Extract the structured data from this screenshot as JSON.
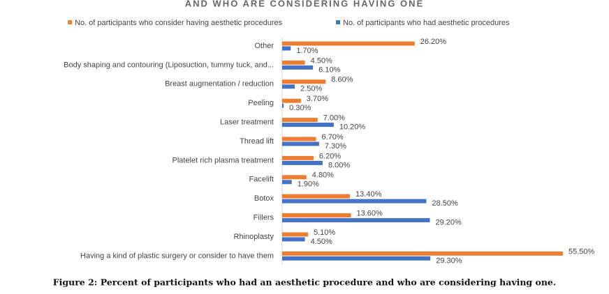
{
  "chart_data": {
    "type": "hbar",
    "title": "AND WHO ARE CONSIDERING HAVING ONE",
    "caption": "Figure 2: Percent of participants who had an aesthetic procedure and who are considering having one.",
    "categories": [
      "Other",
      "Body shaping and contouring (Liposuction, tummy tuck, and...",
      "Breast augmentation / reduction",
      "Peeling",
      "Laser treatment",
      "Thread lift",
      "Platelet rich plasma treatment",
      "Facelift",
      "Botox",
      "Fillers",
      "Rhinoplasty",
      "Having a kind of plastic surgery or consider to have them"
    ],
    "series": [
      {
        "name": "No. of participants who consider having aesthetic procedures",
        "color": "#ed7d31",
        "values": [
          26.2,
          4.5,
          8.6,
          3.7,
          7.0,
          6.7,
          6.2,
          4.8,
          13.4,
          13.6,
          5.1,
          55.5
        ],
        "value_labels": [
          "26.20%",
          "4.50%",
          "8.60%",
          "3.70%",
          "7.00%",
          "6.70%",
          "6.20%",
          "4.80%",
          "13.40%",
          "13.60%",
          "5.10%",
          "55.50%"
        ]
      },
      {
        "name": "No. of participants who had aesthetic procedures",
        "color": "#4472c4",
        "values": [
          1.7,
          6.1,
          2.5,
          0.3,
          10.2,
          7.3,
          8.0,
          1.9,
          28.5,
          29.2,
          4.5,
          29.3
        ],
        "value_labels": [
          "1.70%",
          "6.10%",
          "2.50%",
          "0.30%",
          "10.20%",
          "7.30%",
          "8.00%",
          "1.90%",
          "28.50%",
          "29.20%",
          "4.50%",
          "29.30%"
        ]
      }
    ],
    "legend": "top"
  }
}
